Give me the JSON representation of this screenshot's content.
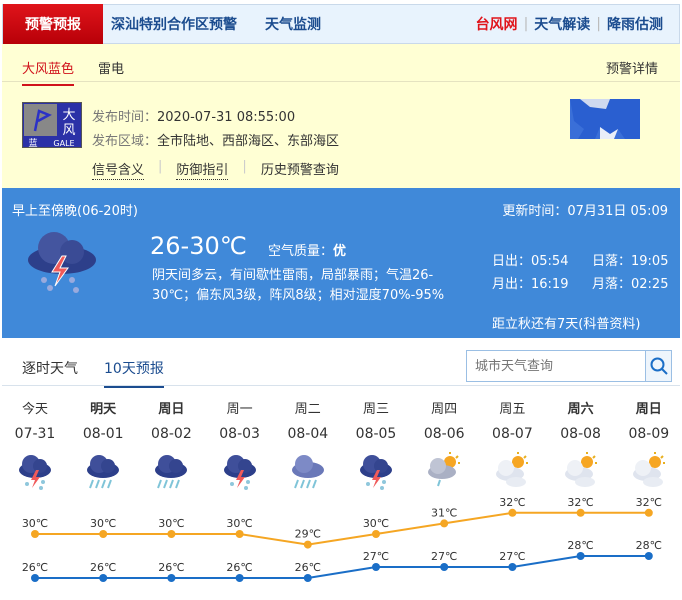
{
  "nav": {
    "active": "预警预报",
    "links": [
      "深汕特别合作区预警",
      "天气监测"
    ],
    "right": [
      {
        "label": "台风网",
        "color": "#e0141b"
      },
      {
        "label": "天气解读",
        "color": "#1b4c8f"
      },
      {
        "label": "降雨估测",
        "color": "#1b4c8f"
      }
    ]
  },
  "warning": {
    "tabs": [
      "大风蓝色",
      "雷电"
    ],
    "detail_link": "预警详情",
    "signal": {
      "name": "大风",
      "level": "蓝",
      "en": "GALE"
    },
    "time_label": "发布时间：",
    "time": "2020-07-31 08:55:00",
    "area_label": "发布区域：",
    "area": "全市陆地、西部海区、东部海区",
    "links": [
      "信号含义",
      "防御指引",
      "历史预警查询"
    ]
  },
  "today": {
    "period": "早上至傍晚(06-20时)",
    "update": "更新时间：07月31日 05:09",
    "temp": "26-30℃",
    "aqi_label": "空气质量：",
    "aqi": "优",
    "desc1": "阴天间多云，有间歇性雷雨，局部暴雨；气温26-",
    "desc2": "30℃；偏东风3级，阵风8级；相对湿度70%-95%",
    "sunrise": "日出：05:54",
    "sunset": "日落：19:05",
    "moonrise": "月出：16:19",
    "moonset": "月落：02:25",
    "solar_term": "距立秋还有7天(科普资料)",
    "icon": "thunderstorm-icon"
  },
  "forecast_tabs": [
    "逐时天气",
    "10天预报"
  ],
  "search": {
    "placeholder": "城市天气查询",
    "icon": "search-icon"
  },
  "colors": {
    "high": "#f5a623",
    "low": "#1a6ec7",
    "accent": "#4089d9"
  },
  "chart_data": {
    "type": "line",
    "categories": [
      "07-31",
      "08-01",
      "08-02",
      "08-03",
      "08-04",
      "08-05",
      "08-06",
      "08-07",
      "08-08",
      "08-09"
    ],
    "days": [
      "今天",
      "明天",
      "周日",
      "周一",
      "周二",
      "周三",
      "周四",
      "周五",
      "周六",
      "周日"
    ],
    "bold": [
      false,
      true,
      true,
      false,
      false,
      false,
      false,
      false,
      true,
      true
    ],
    "icons": [
      "thunderstorm",
      "heavy-rain",
      "heavy-rain",
      "thunderstorm",
      "rain",
      "thunderstorm",
      "partly-cloudy-shower",
      "partly-cloudy",
      "partly-cloudy",
      "partly-cloudy"
    ],
    "series": [
      {
        "values": [
          30,
          30,
          30,
          30,
          29,
          30,
          31,
          32,
          32,
          32
        ]
      },
      {
        "values": [
          26,
          26,
          26,
          26,
          26,
          27,
          27,
          27,
          28,
          28
        ]
      }
    ],
    "unit": "℃"
  }
}
